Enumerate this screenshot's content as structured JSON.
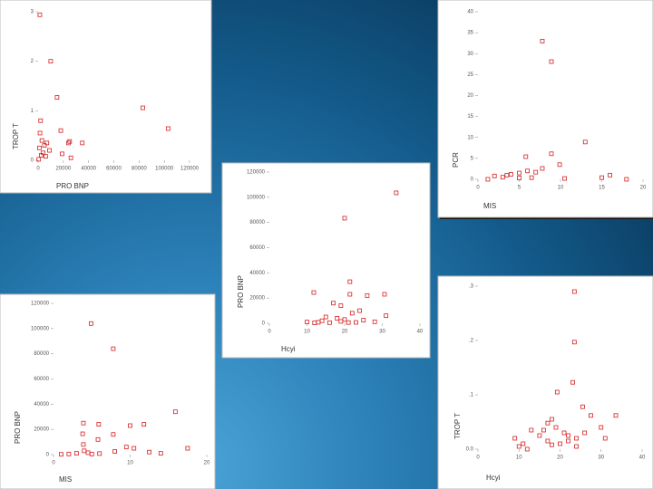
{
  "chart_data": [
    {
      "type": "scatter",
      "x_label": "PRO BNP",
      "y_label": "TROP T",
      "color": "#d42020",
      "xlim": [
        0,
        120000
      ],
      "xticks": [
        0,
        20000,
        40000,
        60000,
        80000,
        100000,
        120000
      ],
      "ylim": [
        0,
        3
      ],
      "yticks": [
        0,
        1,
        2,
        3
      ],
      "x": [
        1400,
        10000,
        15000,
        83000,
        103000,
        18000,
        25000,
        24000,
        35000,
        19000,
        26000,
        2000,
        3000,
        5000,
        1000,
        7000,
        9000,
        4000,
        2500,
        6000,
        500,
        1500
      ],
      "values": [
        2.94,
        2.0,
        1.27,
        1.06,
        0.64,
        0.6,
        0.38,
        0.35,
        0.35,
        0.13,
        0.05,
        0.8,
        0.4,
        0.3,
        0.25,
        0.35,
        0.2,
        0.15,
        0.1,
        0.08,
        0.02,
        0.55
      ]
    },
    {
      "type": "scatter",
      "x_label": "MIS",
      "y_label": "PCR",
      "color": "#d42020",
      "xlim": [
        0,
        20
      ],
      "xticks": [
        0,
        5,
        10,
        15,
        20
      ],
      "ylim": [
        0,
        40
      ],
      "yticks": [
        0,
        5,
        10,
        15,
        20,
        25,
        30,
        35,
        40
      ],
      "x": [
        7.8,
        8.9,
        13,
        8.9,
        5.8,
        9.9,
        7.8,
        7,
        15,
        16,
        18,
        1.2,
        3,
        3.5,
        4,
        5,
        5,
        6,
        2,
        6.5,
        10.5
      ],
      "values": [
        33,
        28.1,
        8.9,
        6.1,
        5.4,
        3.5,
        2.6,
        1.7,
        0.4,
        1,
        0,
        0,
        0.5,
        1,
        1.2,
        0.3,
        1.5,
        2,
        0.8,
        0.4,
        0.2
      ]
    },
    {
      "type": "scatter",
      "x_label": "Hcyi",
      "y_label": "PRO BNP",
      "color": "#d42020",
      "xlim": [
        0,
        40
      ],
      "xticks": [
        0,
        10,
        20,
        30,
        40
      ],
      "ylim": [
        0,
        120000
      ],
      "yticks": [
        0,
        20000,
        40000,
        60000,
        80000,
        100000,
        120000
      ],
      "x": [
        33.7,
        20,
        21.4,
        21.4,
        30.6,
        11.8,
        26,
        17,
        19,
        24,
        22,
        15,
        18,
        20,
        10,
        14,
        16,
        19,
        25,
        28,
        31,
        13,
        21,
        23,
        12
      ],
      "values": [
        103500,
        83400,
        33000,
        23000,
        23000,
        24400,
        22000,
        16000,
        14000,
        10000,
        8000,
        5000,
        4000,
        3000,
        1000,
        2000,
        500,
        1500,
        2500,
        1200,
        6000,
        800,
        600,
        700,
        300
      ]
    },
    {
      "type": "scatter",
      "x_label": "MIS",
      "y_label": "PRO BNP",
      "color": "#d42020",
      "xlim": [
        0,
        20
      ],
      "xticks": [
        0,
        10,
        20
      ],
      "ylim": [
        0,
        120000
      ],
      "yticks": [
        0,
        20000,
        40000,
        60000,
        80000,
        100000,
        120000
      ],
      "x": [
        4.9,
        7.8,
        15.9,
        3.9,
        5.9,
        11.8,
        10,
        7.8,
        3.8,
        5.8,
        3.9,
        9.5,
        10.5,
        12.5,
        14,
        17.5,
        4,
        2,
        1,
        3,
        4.5,
        6,
        8,
        5
      ],
      "values": [
        104000,
        84000,
        34000,
        25000,
        24000,
        24000,
        23000,
        16000,
        16500,
        12000,
        8000,
        6000,
        5000,
        2000,
        1000,
        5000,
        3000,
        500,
        200,
        1000,
        1500,
        800,
        2500,
        400
      ]
    },
    {
      "type": "scatter",
      "x_label": "Hcyi",
      "y_label": "TROP T",
      "color": "#d42020",
      "xlim": [
        0,
        40
      ],
      "xticks": [
        0,
        10,
        20,
        30,
        40
      ],
      "ylim": [
        0,
        0.3
      ],
      "yticks": [
        {
          "value": 0,
          "label": "0.0"
        },
        {
          "value": 0.1,
          "label": ".1"
        },
        {
          "value": 0.2,
          "label": ".2"
        },
        {
          "value": 0.3,
          "label": ".3"
        }
      ],
      "x": [
        23.5,
        23.5,
        23.1,
        19.3,
        25.5,
        33.6,
        27.5,
        18,
        17,
        19,
        16,
        21,
        22,
        24,
        30,
        31,
        9,
        11,
        13,
        15,
        17,
        20,
        24,
        26,
        10,
        12,
        18,
        22
      ],
      "values": [
        0.29,
        0.197,
        0.123,
        0.105,
        0.078,
        0.062,
        0.062,
        0.055,
        0.048,
        0.04,
        0.035,
        0.03,
        0.025,
        0.02,
        0.04,
        0.02,
        0.02,
        0.01,
        0.035,
        0.025,
        0.015,
        0.01,
        0.005,
        0.03,
        0.005,
        0.0,
        0.008,
        0.015
      ]
    }
  ]
}
